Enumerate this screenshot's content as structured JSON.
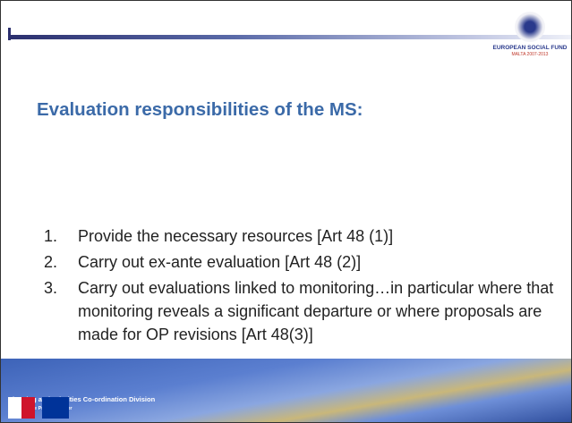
{
  "logo": {
    "name": "EUROPEAN SOCIAL FUND",
    "subtitle": "MALTA 2007-2013"
  },
  "title": "Evaluation responsibilities of the MS:",
  "items": [
    {
      "number": "1.",
      "text": "Provide the necessary resources [Art 48 (1)]"
    },
    {
      "number": "2.",
      "text": "Carry out ex-ante evaluation [Art 48 (2)]"
    },
    {
      "number": "3.",
      "text": "Carry out evaluations linked to monitoring…in particular where that monitoring reveals a significant departure or where proposals are made for OP revisions [Art 48(3)]"
    }
  ],
  "footer": {
    "title": "Planning and Priorities Co-ordination Division",
    "subtitle": "Office of the Prime Minister"
  }
}
